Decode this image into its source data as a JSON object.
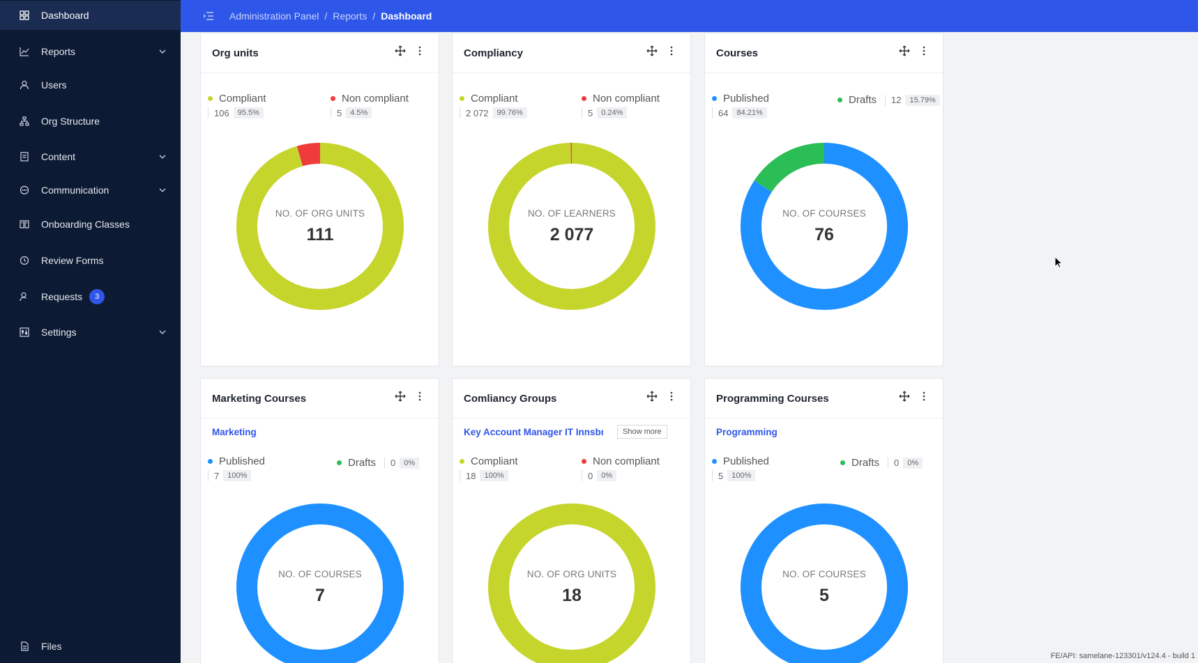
{
  "sidebar": {
    "items": [
      {
        "label": "Dashboard",
        "icon": "grid-icon"
      },
      {
        "label": "Reports",
        "icon": "chart-line-icon"
      },
      {
        "label": "Users",
        "icon": "user-icon"
      },
      {
        "label": "Org Structure",
        "icon": "hierarchy-icon"
      },
      {
        "label": "Content",
        "icon": "document-icon"
      },
      {
        "label": "Communication",
        "icon": "chat-icon"
      },
      {
        "label": "Onboarding Classes",
        "icon": "book-icon"
      },
      {
        "label": "Review Forms",
        "icon": "clock-icon"
      },
      {
        "label": "Requests",
        "icon": "user-request-icon",
        "badge": "3"
      },
      {
        "label": "Settings",
        "icon": "sliders-icon"
      },
      {
        "label": "Files",
        "icon": "file-icon"
      }
    ]
  },
  "header": {
    "breadcrumb": [
      "Administration Panel",
      "Reports",
      "Dashboard"
    ],
    "separator": "/"
  },
  "colors": {
    "compliant": "#c5d52c",
    "non_compliant": "#ef3b3b",
    "published": "#1e90ff",
    "drafts": "#2bbd56",
    "accent": "#2e56e8",
    "sidebar": "#0d1a33"
  },
  "cards": [
    {
      "title": "Org units",
      "legend": [
        {
          "label": "Compliant",
          "count": "106",
          "pct": "95.5%"
        },
        {
          "label": "Non compliant",
          "count": "5",
          "pct": "4.5%"
        }
      ],
      "center_label": "NO. OF ORG UNITS",
      "center_value": "111"
    },
    {
      "title": "Compliancy",
      "legend": [
        {
          "label": "Compliant",
          "count": "2 072",
          "pct": "99.76%"
        },
        {
          "label": "Non compliant",
          "count": "5",
          "pct": "0.24%"
        }
      ],
      "center_label": "NO. OF LEARNERS",
      "center_value": "2 077"
    },
    {
      "title": "Courses",
      "legend": [
        {
          "label": "Published",
          "count": "64",
          "pct": "84.21%"
        },
        {
          "label": "Drafts",
          "count": "12",
          "pct": "15.79%"
        }
      ],
      "center_label": "NO. OF COURSES",
      "center_value": "76"
    },
    {
      "title": "Marketing Courses",
      "filter": "Marketing",
      "legend": [
        {
          "label": "Published",
          "count": "7",
          "pct": "100%"
        },
        {
          "label": "Drafts",
          "count": "0",
          "pct": "0%"
        }
      ],
      "center_label": "NO. OF COURSES",
      "center_value": "7"
    },
    {
      "title": "Comliancy Groups",
      "filter": "Key Account Manager IT Innsbru",
      "show_more": "Show more",
      "legend": [
        {
          "label": "Compliant",
          "count": "18",
          "pct": "100%"
        },
        {
          "label": "Non compliant",
          "count": "0",
          "pct": "0%"
        }
      ],
      "center_label": "NO. OF ORG UNITS",
      "center_value": "18"
    },
    {
      "title": "Programming Courses",
      "filter": "Programming",
      "legend": [
        {
          "label": "Published",
          "count": "5",
          "pct": "100%"
        },
        {
          "label": "Drafts",
          "count": "0",
          "pct": "0%"
        }
      ],
      "center_label": "NO. OF COURSES",
      "center_value": "5"
    }
  ],
  "chart_data": [
    {
      "type": "pie",
      "categories": [
        "Compliant",
        "Non compliant"
      ],
      "values": [
        106,
        5
      ]
    },
    {
      "type": "pie",
      "categories": [
        "Compliant",
        "Non compliant"
      ],
      "values": [
        2072,
        5
      ]
    },
    {
      "type": "pie",
      "categories": [
        "Published",
        "Drafts"
      ],
      "values": [
        64,
        12
      ]
    },
    {
      "type": "pie",
      "categories": [
        "Published",
        "Drafts"
      ],
      "values": [
        7,
        0
      ]
    },
    {
      "type": "pie",
      "categories": [
        "Compliant",
        "Non compliant"
      ],
      "values": [
        18,
        0
      ]
    },
    {
      "type": "pie",
      "categories": [
        "Published",
        "Drafts"
      ],
      "values": [
        5,
        0
      ]
    }
  ],
  "footer": {
    "build": "FE/API: samelane-123301/v124.4 - build 1"
  }
}
